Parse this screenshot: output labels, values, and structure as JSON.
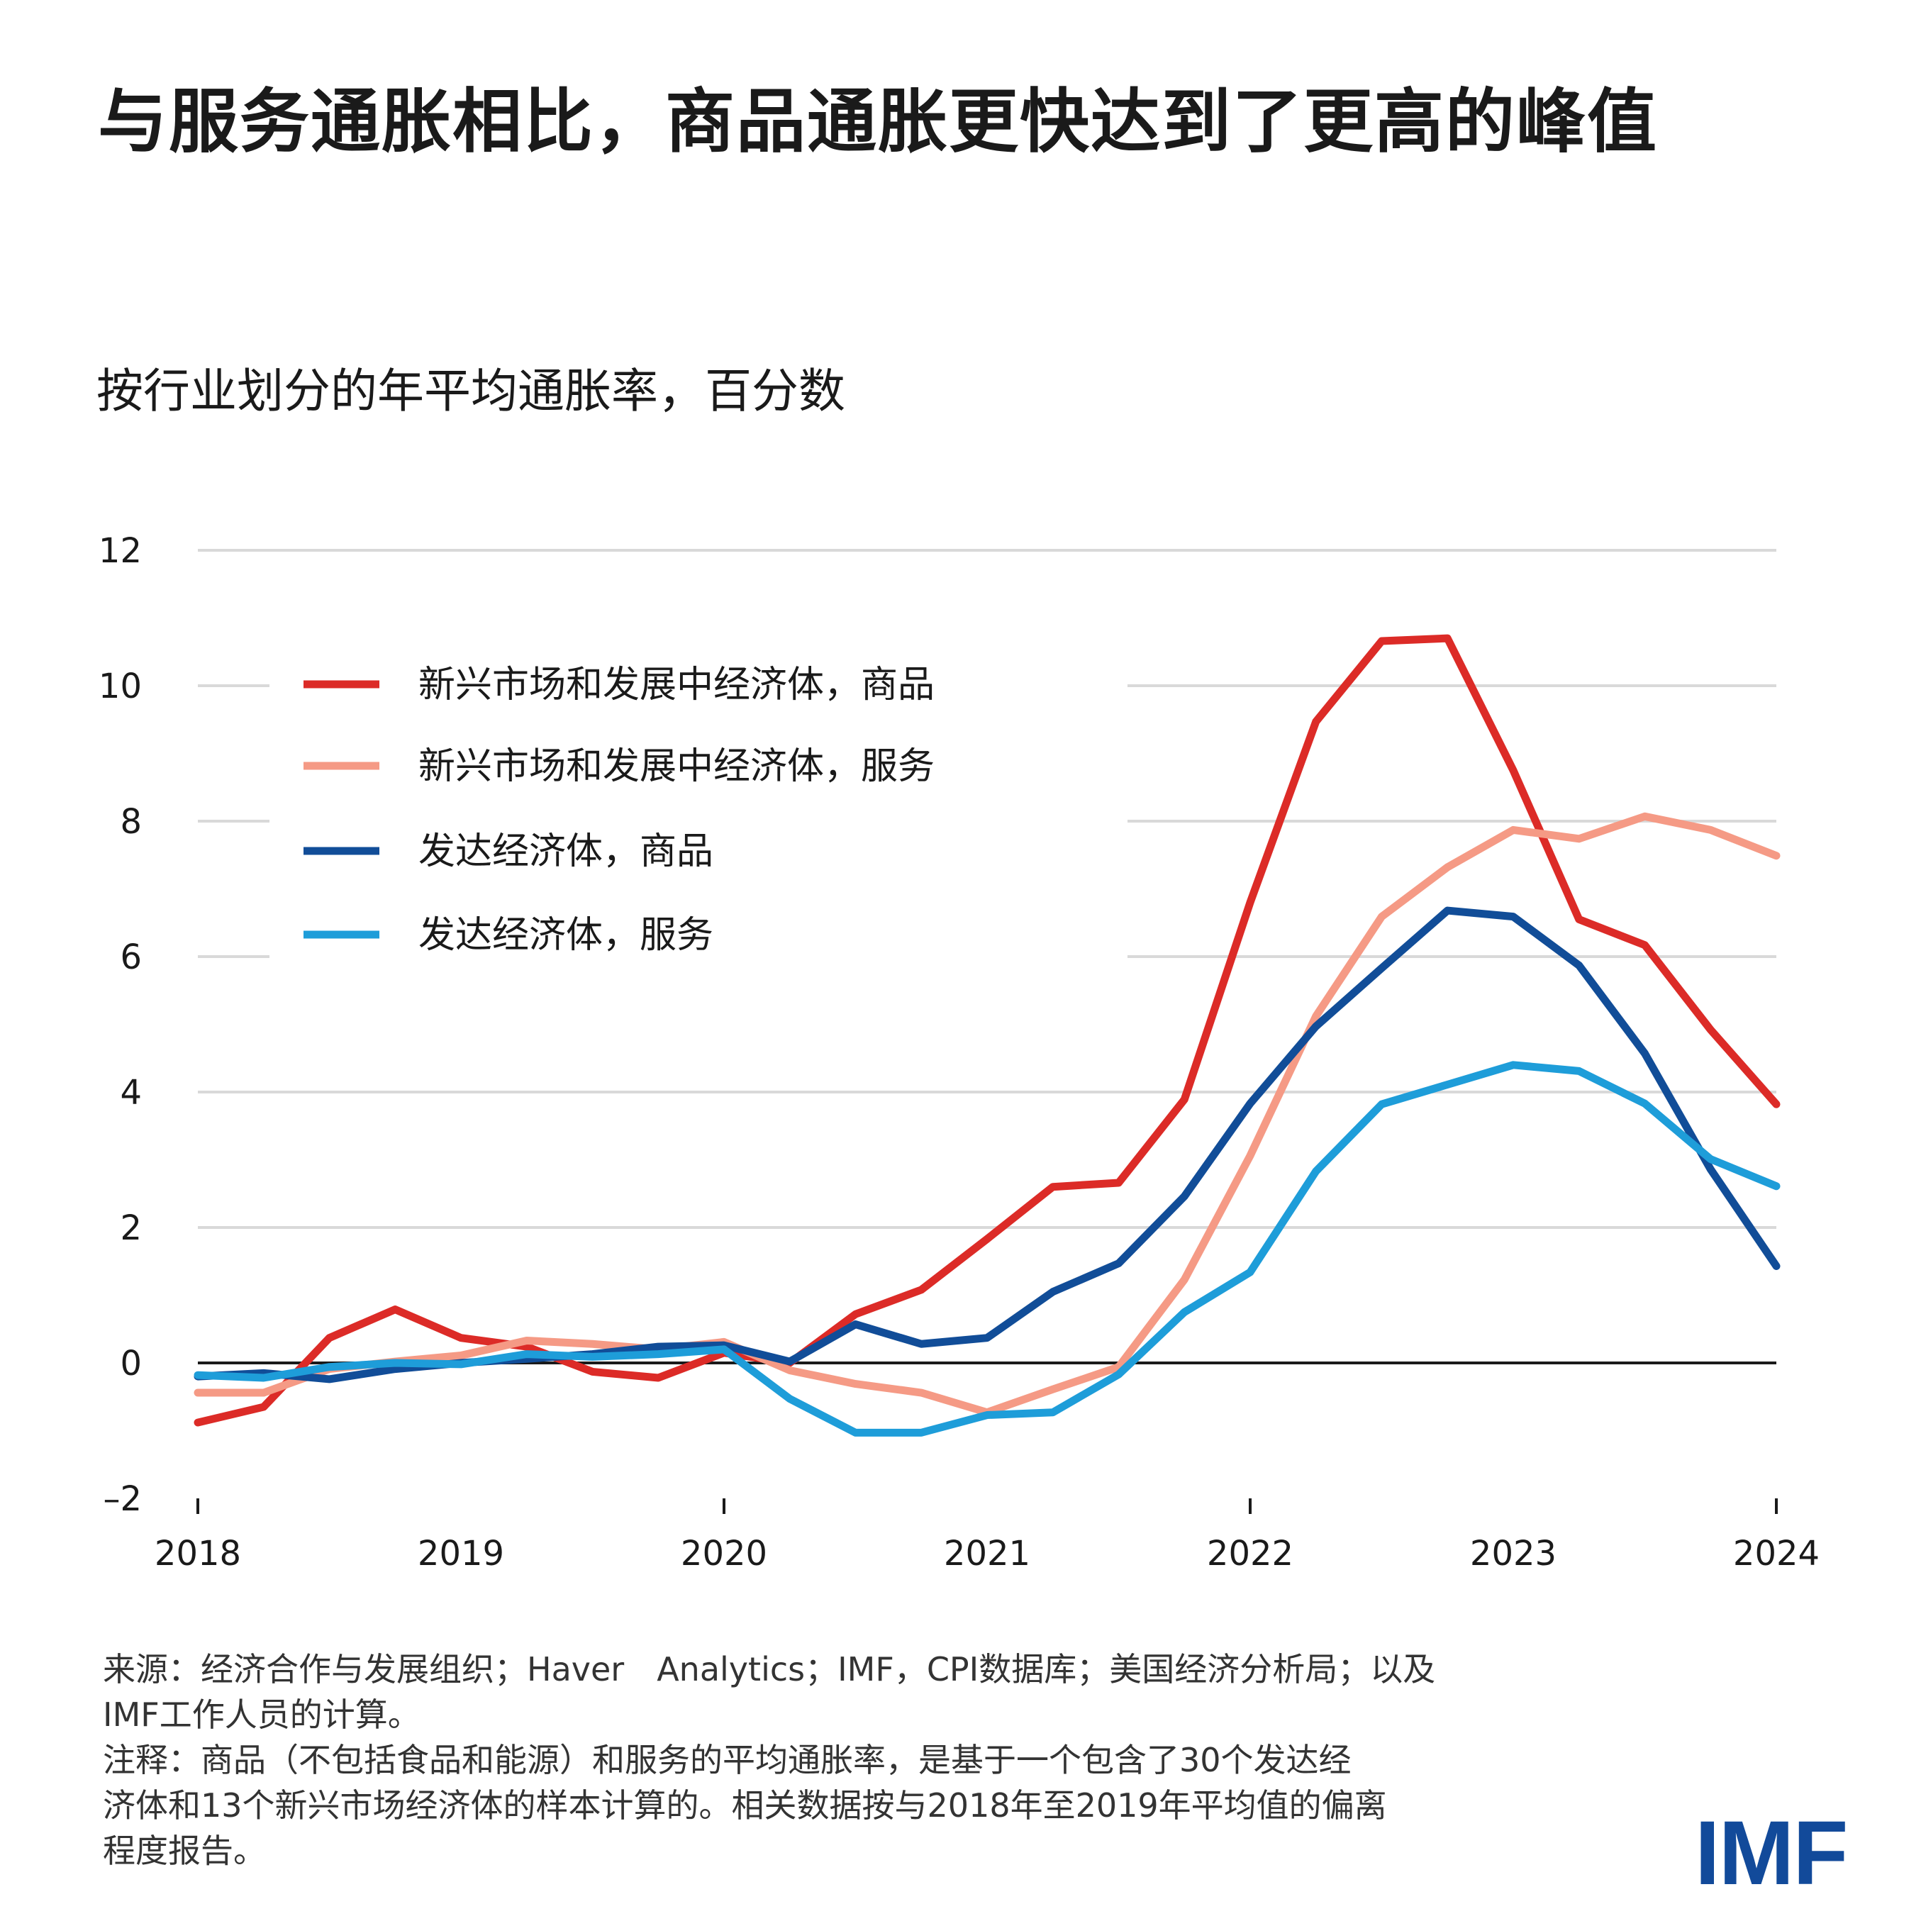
{
  "title": "与服务通胀相比，商品通胀更快达到了更高的峰值",
  "subtitle": "按行业划分的年平均通胀率，百分数",
  "footer": {
    "source_lines": [
      "来源：经济合作与发展组织；Haver　Analytics；IMF，CPI数据库；美国经济分析局；以及",
      "IMF工作人员的计算。"
    ],
    "note_lines": [
      "注释：商品（不包括食品和能源）和服务的平均通胀率，是基于一个包含了30个发达经",
      "济体和13个新兴市场经济体的样本计算的。相关数据按与2018年至2019年平均值的偏离",
      "程度报告。"
    ]
  },
  "logo": "IMF",
  "chart_data": {
    "type": "line",
    "title": "",
    "xlabel": "",
    "ylabel": "",
    "xlim": [
      2018,
      2024
    ],
    "ylim": [
      -2,
      12
    ],
    "x_ticks": [
      "2018",
      "2019",
      "2020",
      "2021",
      "2022",
      "2023",
      "2024"
    ],
    "y_ticks": [
      "12",
      "10",
      "8",
      "6",
      "4",
      "2",
      "0",
      "–2"
    ],
    "y_tick_values": [
      12,
      10,
      8,
      6,
      4,
      2,
      0,
      -2
    ],
    "grid": true,
    "legend_position": "top-left",
    "x": [
      2018.0,
      2018.25,
      2018.5,
      2018.75,
      2019.0,
      2019.25,
      2019.5,
      2019.75,
      2020.0,
      2020.25,
      2020.5,
      2020.75,
      2021.0,
      2021.25,
      2021.5,
      2021.75,
      2022.0,
      2022.25,
      2022.5,
      2022.75,
      2023.0,
      2023.25,
      2023.5,
      2023.75,
      2024.0
    ],
    "series": [
      {
        "name": "新兴市场和发展中经济体，商品",
        "color": "#dc2b27",
        "values": [
          -0.88,
          -0.65,
          0.37,
          0.79,
          0.37,
          0.24,
          -0.13,
          -0.22,
          0.15,
          0.0,
          0.72,
          1.08,
          1.83,
          2.6,
          2.66,
          3.89,
          6.8,
          9.47,
          10.66,
          10.7,
          8.75,
          6.55,
          6.17,
          4.92,
          3.82
        ]
      },
      {
        "name": "新兴市场和发展中经济体，服务",
        "color": "#f59a85",
        "values": [
          -0.44,
          -0.44,
          -0.09,
          0.02,
          0.11,
          0.33,
          0.28,
          0.2,
          0.31,
          -0.11,
          -0.31,
          -0.44,
          -0.73,
          -0.39,
          -0.06,
          1.23,
          3.06,
          5.12,
          6.59,
          7.32,
          7.87,
          7.74,
          8.07,
          7.87,
          7.49
        ]
      },
      {
        "name": "发达经济体，商品",
        "color": "#114d98",
        "values": [
          -0.2,
          -0.15,
          -0.24,
          -0.09,
          0.0,
          0.06,
          0.13,
          0.24,
          0.26,
          0.02,
          0.57,
          0.28,
          0.37,
          1.05,
          1.47,
          2.46,
          3.83,
          4.97,
          5.83,
          6.68,
          6.59,
          5.87,
          4.57,
          2.86,
          1.43
        ]
      },
      {
        "name": "发达经济体，服务",
        "color": "#1e9dd9",
        "values": [
          -0.18,
          -0.22,
          -0.06,
          0.0,
          -0.02,
          0.13,
          0.09,
          0.13,
          0.2,
          -0.53,
          -1.03,
          -1.03,
          -0.77,
          -0.73,
          -0.17,
          0.75,
          1.34,
          2.83,
          3.82,
          4.11,
          4.4,
          4.31,
          3.83,
          3.01,
          2.61
        ]
      }
    ]
  }
}
